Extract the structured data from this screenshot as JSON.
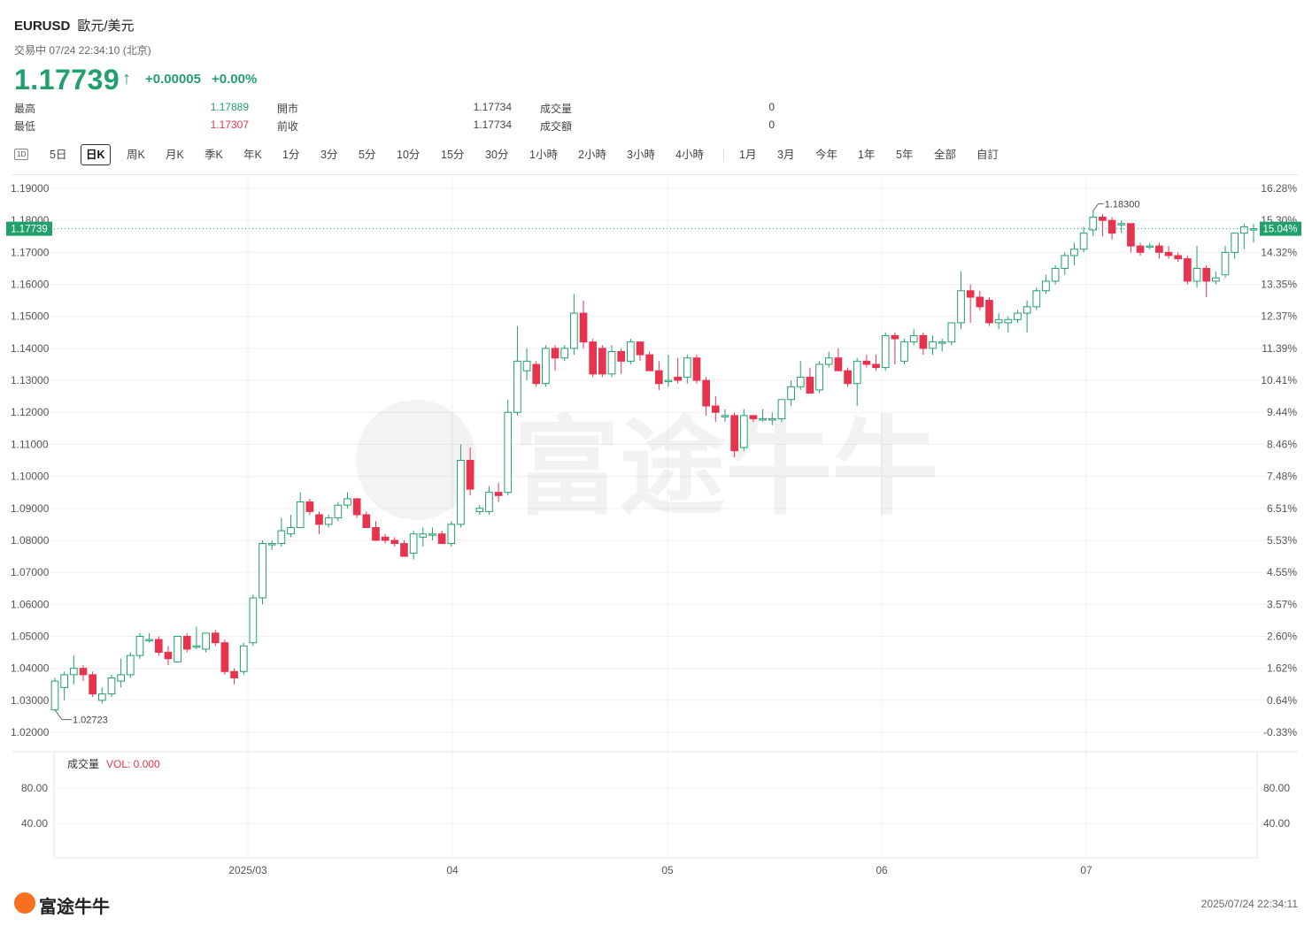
{
  "header": {
    "symbol": "EURUSD",
    "name": "歐元/美元",
    "status": "交易中 07/24 22:34:10 (北京)",
    "price": "1.17739",
    "change": "+0.00005",
    "change_pct": "+0.00%",
    "stats": {
      "high_label": "最高",
      "high": "1.17889",
      "low_label": "最低",
      "low": "1.17307",
      "open_label": "開市",
      "open": "1.17734",
      "prev_close_label": "前收",
      "prev_close": "1.17734",
      "volume_label": "成交量",
      "volume": "0",
      "turnover_label": "成交額",
      "turnover": "0"
    },
    "colors": {
      "up": "#22a06b",
      "down": "#e8334f"
    }
  },
  "tabs": [
    "5日",
    "日K",
    "周K",
    "月K",
    "季K",
    "年K",
    "1分",
    "3分",
    "5分",
    "10分",
    "15分",
    "30分",
    "1小時",
    "2小時",
    "3小時",
    "4小時",
    "1月",
    "3月",
    "今年",
    "1年",
    "5年",
    "全部",
    "自訂"
  ],
  "tab_icon": "1D",
  "active_tab": "日K",
  "chart_data": {
    "type": "candlestick",
    "y_left_ticks": [
      "1.19000",
      "1.18000",
      "1.17000",
      "1.16000",
      "1.15000",
      "1.14000",
      "1.13000",
      "1.12000",
      "1.11000",
      "1.10000",
      "1.09000",
      "1.08000",
      "1.07000",
      "1.06000",
      "1.05000",
      "1.04000",
      "1.03000",
      "1.02000"
    ],
    "y_right_ticks": [
      "16.28%",
      "15.30%",
      "14.32%",
      "13.35%",
      "12.37%",
      "11.39%",
      "10.41%",
      "9.44%",
      "8.46%",
      "7.48%",
      "6.51%",
      "5.53%",
      "4.55%",
      "3.57%",
      "2.60%",
      "1.62%",
      "0.64%",
      "-0.33%"
    ],
    "ylim": [
      1.02,
      1.19
    ],
    "x_labels": [
      "2025/03",
      "04",
      "05",
      "06",
      "07"
    ],
    "current_price_label": "1.17739",
    "current_pct_label": "15.04%",
    "current_price": 1.17739,
    "max_annotation": "1.18300",
    "min_annotation": "1.02723",
    "candles": [
      [
        1.027,
        1.036,
        1.027,
        1.037
      ],
      [
        1.034,
        1.038,
        1.03,
        1.039
      ],
      [
        1.038,
        1.04,
        1.035,
        1.044
      ],
      [
        1.04,
        1.038,
        1.036,
        1.041
      ],
      [
        1.038,
        1.032,
        1.031,
        1.039
      ],
      [
        1.03,
        1.032,
        1.029,
        1.034
      ],
      [
        1.032,
        1.037,
        1.031,
        1.038
      ],
      [
        1.036,
        1.038,
        1.034,
        1.043
      ],
      [
        1.038,
        1.044,
        1.037,
        1.045
      ],
      [
        1.044,
        1.05,
        1.043,
        1.051
      ],
      [
        1.049,
        1.049,
        1.048,
        1.051
      ],
      [
        1.049,
        1.045,
        1.044,
        1.05
      ],
      [
        1.045,
        1.043,
        1.041,
        1.047
      ],
      [
        1.042,
        1.05,
        1.042,
        1.05
      ],
      [
        1.05,
        1.046,
        1.045,
        1.051
      ],
      [
        1.047,
        1.047,
        1.046,
        1.053
      ],
      [
        1.046,
        1.051,
        1.045,
        1.051
      ],
      [
        1.051,
        1.048,
        1.047,
        1.052
      ],
      [
        1.048,
        1.039,
        1.038,
        1.049
      ],
      [
        1.039,
        1.037,
        1.035,
        1.04
      ],
      [
        1.039,
        1.047,
        1.038,
        1.048
      ],
      [
        1.048,
        1.062,
        1.047,
        1.063
      ],
      [
        1.062,
        1.079,
        1.06,
        1.08
      ],
      [
        1.079,
        1.079,
        1.077,
        1.08
      ],
      [
        1.079,
        1.083,
        1.078,
        1.087
      ],
      [
        1.082,
        1.084,
        1.081,
        1.088
      ],
      [
        1.084,
        1.092,
        1.084,
        1.095
      ],
      [
        1.092,
        1.089,
        1.088,
        1.093
      ],
      [
        1.088,
        1.085,
        1.082,
        1.089
      ],
      [
        1.085,
        1.087,
        1.084,
        1.088
      ],
      [
        1.087,
        1.091,
        1.086,
        1.092
      ],
      [
        1.091,
        1.093,
        1.09,
        1.095
      ],
      [
        1.093,
        1.088,
        1.087,
        1.093
      ],
      [
        1.088,
        1.084,
        1.084,
        1.089
      ],
      [
        1.084,
        1.08,
        1.08,
        1.086
      ],
      [
        1.081,
        1.08,
        1.079,
        1.082
      ],
      [
        1.08,
        1.079,
        1.078,
        1.081
      ],
      [
        1.079,
        1.075,
        1.075,
        1.08
      ],
      [
        1.076,
        1.082,
        1.074,
        1.083
      ],
      [
        1.081,
        1.082,
        1.078,
        1.084
      ],
      [
        1.082,
        1.082,
        1.08,
        1.084
      ],
      [
        1.082,
        1.079,
        1.079,
        1.083
      ],
      [
        1.079,
        1.085,
        1.078,
        1.086
      ],
      [
        1.085,
        1.105,
        1.084,
        1.11
      ],
      [
        1.105,
        1.096,
        1.094,
        1.109
      ],
      [
        1.089,
        1.09,
        1.088,
        1.091
      ],
      [
        1.089,
        1.095,
        1.088,
        1.097
      ],
      [
        1.095,
        1.094,
        1.092,
        1.098
      ],
      [
        1.095,
        1.12,
        1.094,
        1.124
      ],
      [
        1.12,
        1.136,
        1.119,
        1.147
      ],
      [
        1.133,
        1.136,
        1.13,
        1.14
      ],
      [
        1.135,
        1.129,
        1.128,
        1.136
      ],
      [
        1.129,
        1.14,
        1.128,
        1.141
      ],
      [
        1.14,
        1.137,
        1.133,
        1.141
      ],
      [
        1.137,
        1.14,
        1.136,
        1.141
      ],
      [
        1.14,
        1.151,
        1.138,
        1.157
      ],
      [
        1.151,
        1.142,
        1.14,
        1.155
      ],
      [
        1.142,
        1.132,
        1.131,
        1.143
      ],
      [
        1.14,
        1.132,
        1.131,
        1.141
      ],
      [
        1.132,
        1.139,
        1.131,
        1.141
      ],
      [
        1.139,
        1.136,
        1.132,
        1.14
      ],
      [
        1.136,
        1.142,
        1.135,
        1.143
      ],
      [
        1.142,
        1.138,
        1.136,
        1.142
      ],
      [
        1.138,
        1.133,
        1.133,
        1.139
      ],
      [
        1.133,
        1.129,
        1.127,
        1.136
      ],
      [
        1.13,
        1.13,
        1.128,
        1.138
      ],
      [
        1.131,
        1.13,
        1.129,
        1.137
      ],
      [
        1.131,
        1.137,
        1.129,
        1.138
      ],
      [
        1.137,
        1.13,
        1.129,
        1.138
      ],
      [
        1.13,
        1.122,
        1.119,
        1.131
      ],
      [
        1.122,
        1.12,
        1.117,
        1.125
      ],
      [
        1.119,
        1.119,
        1.117,
        1.121
      ],
      [
        1.119,
        1.108,
        1.106,
        1.12
      ],
      [
        1.109,
        1.119,
        1.108,
        1.121
      ],
      [
        1.119,
        1.118,
        1.117,
        1.119
      ],
      [
        1.118,
        1.118,
        1.117,
        1.121
      ],
      [
        1.118,
        1.118,
        1.116,
        1.12
      ],
      [
        1.118,
        1.124,
        1.117,
        1.124
      ],
      [
        1.124,
        1.128,
        1.122,
        1.13
      ],
      [
        1.128,
        1.131,
        1.127,
        1.136
      ],
      [
        1.131,
        1.126,
        1.126,
        1.134
      ],
      [
        1.127,
        1.135,
        1.126,
        1.136
      ],
      [
        1.135,
        1.137,
        1.134,
        1.139
      ],
      [
        1.137,
        1.133,
        1.133,
        1.14
      ],
      [
        1.133,
        1.129,
        1.128,
        1.134
      ],
      [
        1.129,
        1.136,
        1.122,
        1.137
      ],
      [
        1.136,
        1.135,
        1.134,
        1.138
      ],
      [
        1.135,
        1.134,
        1.133,
        1.138
      ],
      [
        1.134,
        1.144,
        1.133,
        1.145
      ],
      [
        1.144,
        1.143,
        1.135,
        1.145
      ],
      [
        1.136,
        1.142,
        1.135,
        1.143
      ],
      [
        1.142,
        1.144,
        1.141,
        1.146
      ],
      [
        1.144,
        1.14,
        1.138,
        1.145
      ],
      [
        1.14,
        1.142,
        1.138,
        1.144
      ],
      [
        1.142,
        1.142,
        1.139,
        1.143
      ],
      [
        1.142,
        1.148,
        1.141,
        1.148
      ],
      [
        1.148,
        1.158,
        1.146,
        1.164
      ],
      [
        1.158,
        1.156,
        1.148,
        1.16
      ],
      [
        1.156,
        1.153,
        1.152,
        1.158
      ],
      [
        1.155,
        1.148,
        1.147,
        1.156
      ],
      [
        1.148,
        1.149,
        1.146,
        1.151
      ],
      [
        1.148,
        1.149,
        1.145,
        1.15
      ],
      [
        1.149,
        1.151,
        1.148,
        1.152
      ],
      [
        1.151,
        1.153,
        1.145,
        1.155
      ],
      [
        1.153,
        1.158,
        1.152,
        1.159
      ],
      [
        1.158,
        1.161,
        1.157,
        1.163
      ],
      [
        1.161,
        1.165,
        1.16,
        1.166
      ],
      [
        1.165,
        1.169,
        1.163,
        1.17
      ],
      [
        1.169,
        1.171,
        1.166,
        1.173
      ],
      [
        1.171,
        1.176,
        1.17,
        1.178
      ],
      [
        1.177,
        1.181,
        1.175,
        1.183
      ],
      [
        1.181,
        1.18,
        1.175,
        1.182
      ],
      [
        1.18,
        1.176,
        1.174,
        1.181
      ],
      [
        1.179,
        1.179,
        1.176,
        1.18
      ],
      [
        1.179,
        1.172,
        1.17,
        1.179
      ],
      [
        1.172,
        1.17,
        1.169,
        1.173
      ],
      [
        1.172,
        1.172,
        1.171,
        1.173
      ],
      [
        1.172,
        1.17,
        1.168,
        1.173
      ],
      [
        1.17,
        1.169,
        1.168,
        1.172
      ],
      [
        1.169,
        1.168,
        1.167,
        1.17
      ],
      [
        1.168,
        1.161,
        1.16,
        1.169
      ],
      [
        1.161,
        1.165,
        1.159,
        1.172
      ],
      [
        1.165,
        1.161,
        1.156,
        1.166
      ],
      [
        1.161,
        1.162,
        1.16,
        1.164
      ],
      [
        1.163,
        1.17,
        1.162,
        1.172
      ],
      [
        1.17,
        1.176,
        1.168,
        1.176
      ],
      [
        1.176,
        1.178,
        1.171,
        1.179
      ],
      [
        1.1773,
        1.1774,
        1.1731,
        1.1789
      ]
    ],
    "volume_label": "成交量",
    "volume_value_label": "VOL: 0.000",
    "volume_ticks": [
      "80.00",
      "40.00"
    ]
  },
  "watermark": "富途牛牛",
  "footer": {
    "logo_text": "富途牛牛",
    "timestamp": "2025/07/24 22:34:11"
  }
}
